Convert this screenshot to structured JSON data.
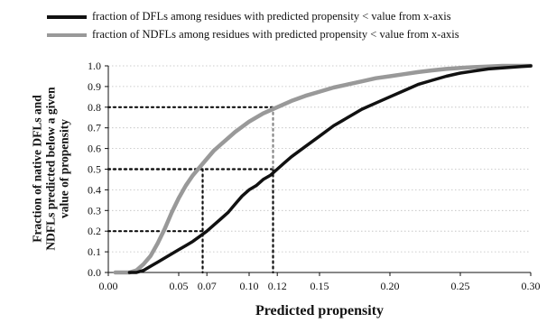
{
  "chart_data": {
    "type": "line",
    "title": "",
    "xlabel": "Predicted propensity",
    "ylabel_lines": [
      "Fraction of native DFLs and",
      "NDFLs predicted below a given",
      "value of propensity"
    ],
    "xlim": [
      0.0,
      0.3
    ],
    "ylim": [
      0.0,
      1.0
    ],
    "x_ticks": [
      0.0,
      0.05,
      0.07,
      0.1,
      0.12,
      0.15,
      0.2,
      0.25,
      0.3
    ],
    "x_tick_labels": [
      "0.00",
      "0.05",
      "0.07",
      "0.10",
      "0.12",
      "0.15",
      "0.20",
      "0.25",
      "0.30"
    ],
    "y_ticks": [
      0.0,
      0.1,
      0.2,
      0.3,
      0.4,
      0.5,
      0.6,
      0.7,
      0.8,
      0.9,
      1.0
    ],
    "y_tick_labels": [
      "0.0",
      "0.1",
      "0.2",
      "0.3",
      "0.4",
      "0.5",
      "0.6",
      "0.7",
      "0.8",
      "0.9",
      "1.0"
    ],
    "grid": "horizontal dotted",
    "legend_position": "top",
    "series": [
      {
        "name": "fraction of DFLs among residues with predicted propensity < value from x-axis",
        "color": "#111111",
        "x": [
          0.015,
          0.02,
          0.025,
          0.03,
          0.035,
          0.04,
          0.045,
          0.05,
          0.055,
          0.06,
          0.065,
          0.07,
          0.075,
          0.08,
          0.085,
          0.09,
          0.095,
          0.1,
          0.105,
          0.11,
          0.115,
          0.12,
          0.125,
          0.13,
          0.14,
          0.15,
          0.16,
          0.17,
          0.18,
          0.19,
          0.2,
          0.21,
          0.22,
          0.23,
          0.24,
          0.25,
          0.26,
          0.27,
          0.28,
          0.29,
          0.3
        ],
        "y": [
          0.0,
          0.0,
          0.01,
          0.03,
          0.05,
          0.07,
          0.09,
          0.11,
          0.13,
          0.15,
          0.175,
          0.2,
          0.23,
          0.26,
          0.29,
          0.33,
          0.37,
          0.4,
          0.42,
          0.45,
          0.47,
          0.5,
          0.53,
          0.56,
          0.61,
          0.66,
          0.71,
          0.75,
          0.79,
          0.82,
          0.85,
          0.88,
          0.91,
          0.93,
          0.95,
          0.965,
          0.975,
          0.985,
          0.99,
          0.995,
          1.0
        ]
      },
      {
        "name": "fraction of NDFLs among residues with predicted propensity < value from x-axis",
        "color": "#999999",
        "x": [
          0.005,
          0.01,
          0.015,
          0.02,
          0.025,
          0.03,
          0.035,
          0.04,
          0.045,
          0.05,
          0.055,
          0.06,
          0.065,
          0.07,
          0.075,
          0.08,
          0.085,
          0.09,
          0.095,
          0.1,
          0.11,
          0.12,
          0.13,
          0.14,
          0.15,
          0.16,
          0.17,
          0.18,
          0.19,
          0.2,
          0.21,
          0.22,
          0.23,
          0.24,
          0.25,
          0.26,
          0.27,
          0.28,
          0.3
        ],
        "y": [
          0.0,
          0.0,
          0.0,
          0.01,
          0.04,
          0.08,
          0.14,
          0.21,
          0.29,
          0.36,
          0.42,
          0.47,
          0.51,
          0.55,
          0.59,
          0.62,
          0.65,
          0.68,
          0.705,
          0.73,
          0.77,
          0.8,
          0.83,
          0.855,
          0.875,
          0.895,
          0.91,
          0.925,
          0.94,
          0.95,
          0.96,
          0.97,
          0.978,
          0.985,
          0.99,
          0.994,
          0.997,
          1.0,
          1.0
        ]
      }
    ],
    "annotations": {
      "reference_lines": [
        {
          "y": 0.8,
          "x": 0.117,
          "color": "#111111",
          "style": "dotted"
        },
        {
          "y": 0.5,
          "x": 0.117,
          "color": "#111111",
          "style": "dotted"
        },
        {
          "y": 0.2,
          "x": 0.067,
          "color": "#111111",
          "style": "dotted"
        },
        {
          "y": 0.5,
          "x": 0.067,
          "color": "#111111",
          "style": "dotted"
        }
      ],
      "vertical_drops": [
        {
          "x": 0.067,
          "y_top": 0.5,
          "color": "#111111",
          "style": "dotted"
        },
        {
          "x": 0.117,
          "y_top": 0.5,
          "color": "#111111",
          "style": "dotted"
        },
        {
          "x": 0.117,
          "y_from": 0.5,
          "y_to": 0.8,
          "color": "#888888",
          "style": "dotted"
        }
      ]
    }
  }
}
